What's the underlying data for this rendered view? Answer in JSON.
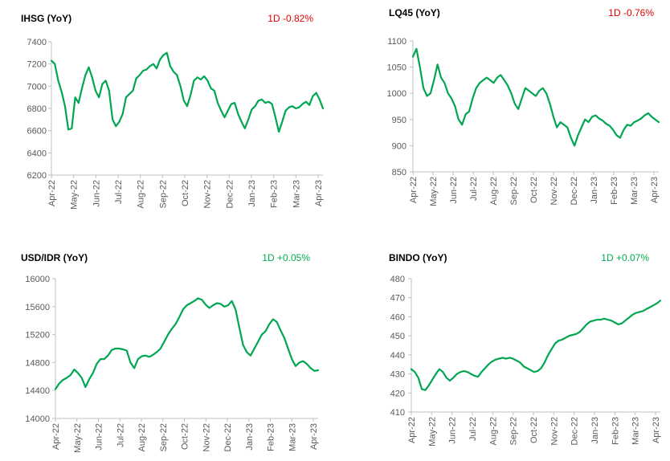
{
  "colors": {
    "line": "#00a651",
    "negative": "#e00000",
    "positive": "#00b050",
    "axis": "#bfbfbf",
    "tick_text": "#595959"
  },
  "chart_data": [
    {
      "type": "line",
      "title": "IHSG (YoY)",
      "change": "1D -0.82%",
      "change_color": "#e00000",
      "x_labels": [
        "Apr-22",
        "May-22",
        "Jun-22",
        "Jul-22",
        "Aug-22",
        "Sep-22",
        "Oct-22",
        "Nov-22",
        "Dec-22",
        "Jan-23",
        "Feb-23",
        "Mar-23",
        "Apr-23"
      ],
      "ylim": [
        6200,
        7400
      ],
      "y_ticks": [
        6200,
        6400,
        6600,
        6800,
        7000,
        7200,
        7400
      ],
      "y_tick_labels": [
        "6200",
        "6400",
        "6600",
        "6800",
        "7000",
        "7200",
        "7400"
      ],
      "series": [
        {
          "values": [
            7230,
            7200,
            7050,
            6950,
            6820,
            6610,
            6620,
            6900,
            6850,
            6980,
            7100,
            7170,
            7080,
            6960,
            6900,
            7020,
            7050,
            6960,
            6700,
            6640,
            6680,
            6750,
            6900,
            6930,
            6960,
            7070,
            7100,
            7140,
            7150,
            7180,
            7200,
            7160,
            7240,
            7280,
            7300,
            7180,
            7130,
            7100,
            7000,
            6870,
            6820,
            6920,
            7050,
            7080,
            7060,
            7090,
            7050,
            6980,
            6960,
            6850,
            6780,
            6720,
            6780,
            6840,
            6850,
            6750,
            6680,
            6620,
            6700,
            6790,
            6820,
            6870,
            6880,
            6850,
            6860,
            6840,
            6720,
            6590,
            6680,
            6780,
            6810,
            6820,
            6800,
            6810,
            6840,
            6860,
            6830,
            6910,
            6940,
            6880,
            6800
          ]
        }
      ]
    },
    {
      "type": "line",
      "title": "LQ45 (YoY)",
      "change": "1D -0.76%",
      "change_color": "#e00000",
      "x_labels": [
        "Apr-22",
        "May-22",
        "Jun-22",
        "Jul-22",
        "Aug-22",
        "Sep-22",
        "Oct-22",
        "Nov-22",
        "Dec-22",
        "Jan-23",
        "Feb-23",
        "Mar-23",
        "Apr-23"
      ],
      "ylim": [
        850,
        1100
      ],
      "y_ticks": [
        850,
        900,
        950,
        1000,
        1050,
        1100
      ],
      "y_tick_labels": [
        "850",
        "900",
        "950",
        "1000",
        "1050",
        "1100"
      ],
      "series": [
        {
          "values": [
            1070,
            1085,
            1050,
            1010,
            995,
            1000,
            1025,
            1055,
            1030,
            1020,
            1000,
            990,
            975,
            950,
            940,
            960,
            965,
            990,
            1010,
            1020,
            1025,
            1030,
            1025,
            1020,
            1030,
            1035,
            1025,
            1015,
            1000,
            980,
            970,
            990,
            1010,
            1005,
            1000,
            995,
            1005,
            1010,
            1000,
            980,
            955,
            935,
            945,
            940,
            935,
            915,
            900,
            920,
            935,
            950,
            945,
            955,
            958,
            952,
            948,
            942,
            938,
            930,
            920,
            915,
            930,
            940,
            938,
            945,
            948,
            952,
            958,
            962,
            955,
            950,
            945
          ]
        }
      ]
    },
    {
      "type": "line",
      "title": "USD/IDR (YoY)",
      "change": "1D +0.05%",
      "change_color": "#00b050",
      "x_labels": [
        "Apr-22",
        "May-22",
        "Jun-22",
        "Jul-22",
        "Aug-22",
        "Sep-22",
        "Oct-22",
        "Nov-22",
        "Dec-22",
        "Jan-23",
        "Feb-23",
        "Mar-23",
        "Apr-23"
      ],
      "ylim": [
        14000,
        16000
      ],
      "y_ticks": [
        14000,
        14400,
        14800,
        15200,
        15600,
        16000
      ],
      "y_tick_labels": [
        "14000",
        "14400",
        "14800",
        "15200",
        "15600",
        "16000"
      ],
      "series": [
        {
          "values": [
            14420,
            14500,
            14550,
            14580,
            14620,
            14700,
            14650,
            14580,
            14450,
            14560,
            14650,
            14780,
            14850,
            14850,
            14900,
            14980,
            15000,
            15000,
            14990,
            14970,
            14800,
            14720,
            14850,
            14890,
            14900,
            14880,
            14910,
            14950,
            15000,
            15100,
            15200,
            15280,
            15350,
            15450,
            15560,
            15620,
            15650,
            15680,
            15720,
            15700,
            15630,
            15580,
            15620,
            15650,
            15640,
            15600,
            15620,
            15680,
            15560,
            15300,
            15050,
            14950,
            14900,
            15000,
            15100,
            15200,
            15250,
            15350,
            15420,
            15380,
            15260,
            15150,
            15000,
            14850,
            14750,
            14800,
            14820,
            14780,
            14720,
            14680,
            14690
          ]
        }
      ]
    },
    {
      "type": "line",
      "title": "BINDO (YoY)",
      "change": "1D +0.07%",
      "change_color": "#00b050",
      "x_labels": [
        "Apr-22",
        "May-22",
        "Jun-22",
        "Jul-22",
        "Aug-22",
        "Sep-22",
        "Oct-22",
        "Nov-22",
        "Dec-22",
        "Jan-23",
        "Feb-23",
        "Mar-23",
        "Apr-23"
      ],
      "ylim": [
        410,
        480
      ],
      "y_ticks": [
        410,
        420,
        430,
        440,
        450,
        460,
        470,
        480
      ],
      "y_tick_labels": [
        "410",
        "420",
        "430",
        "440",
        "450",
        "460",
        "470",
        "480"
      ],
      "series": [
        {
          "values": [
            432.5,
            431,
            428,
            422,
            421.5,
            424,
            427,
            430,
            432.5,
            431,
            428,
            426.5,
            428,
            430,
            431,
            431.5,
            431,
            430,
            429,
            428.5,
            431,
            433,
            435,
            436.5,
            437.5,
            438,
            438.5,
            438,
            438.5,
            438,
            437,
            436,
            434,
            433,
            432,
            431,
            431.5,
            433,
            436,
            440,
            443,
            446,
            447.5,
            448,
            449,
            450,
            450.5,
            451,
            452,
            454,
            456,
            457.5,
            458,
            458.5,
            458.5,
            459,
            458.5,
            458,
            457,
            456,
            456.5,
            458,
            459.5,
            461,
            462,
            462.5,
            463,
            464,
            465,
            466,
            467,
            468.5
          ]
        }
      ]
    }
  ]
}
